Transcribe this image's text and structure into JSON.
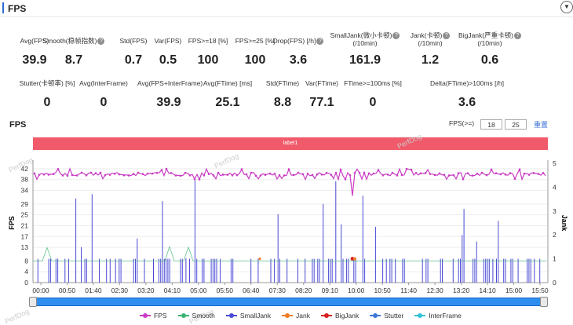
{
  "header": {
    "title": "FPS"
  },
  "stats_row1": [
    {
      "label": "Avg(FPS)",
      "value": "39.9",
      "help": false
    },
    {
      "label": "Smooth(稳帧指数)",
      "value": "8.7",
      "help": true
    },
    {
      "label": "Std(FPS)",
      "value": "0.7",
      "help": false
    },
    {
      "label": "Var(FPS)",
      "value": "0.5",
      "help": false
    },
    {
      "label": "FPS>=18 [%]",
      "value": "100",
      "help": false
    },
    {
      "label": "FPS>=25 [%]",
      "value": "100",
      "help": false
    },
    {
      "label": "Drop(FPS) [/h]",
      "value": "3.6",
      "help": true
    },
    {
      "label": "SmallJank(微小卡顿)",
      "label2": "(/10min)",
      "value": "161.9",
      "help": true
    },
    {
      "label": "Jank(卡顿)",
      "label2": "(/10min)",
      "value": "1.2",
      "help": true
    },
    {
      "label": "BigJank(严重卡顿)",
      "label2": "(/10min)",
      "value": "0.6",
      "help": true
    }
  ],
  "stats_row2": [
    {
      "label": "Stutter(卡顿率) [%]",
      "value": "0"
    },
    {
      "label": "Avg(InterFrame)",
      "value": "0"
    },
    {
      "label": "Avg(FPS+InterFrame)",
      "value": "39.9"
    },
    {
      "label": "Avg(FTime) [ms]",
      "value": "25.1"
    },
    {
      "label": "Std(FTime)",
      "value": "8.8"
    },
    {
      "label": "Var(FTime)",
      "value": "77.1"
    },
    {
      "label": "FTime>=100ms [%]",
      "value": "0"
    },
    {
      "label": "Delta(FTime)>100ms [/h]",
      "value": "3.6"
    }
  ],
  "chart": {
    "title": "FPS",
    "threshold_label": "FPS(>=)",
    "threshold_low": "18",
    "threshold_high": "25",
    "reset_label": "重置",
    "band_label": "label1",
    "watermark": "PerfDog"
  },
  "chart_data": {
    "type": "line",
    "ylabel": "FPS",
    "y2label": "Jank",
    "ylim": [
      0,
      44
    ],
    "y2lim": [
      0,
      5
    ],
    "yticks": [
      0,
      4,
      8,
      13,
      17,
      21,
      25,
      29,
      34,
      38,
      42
    ],
    "y2ticks": [
      0,
      1,
      2,
      3,
      4,
      5
    ],
    "xticks": [
      "00:00",
      "00:50",
      "01:40",
      "02:30",
      "03:20",
      "04:10",
      "05:00",
      "05:50",
      "06:40",
      "07:30",
      "08:20",
      "09:10",
      "10:00",
      "10:50",
      "11:40",
      "12:30",
      "13:20",
      "14:10",
      "15:00",
      "15:50"
    ],
    "series": [
      {
        "name": "FPS",
        "color": "#c93cc4",
        "baseline": 40,
        "min": 38,
        "max": 42,
        "drops": [
          {
            "t": 0.62,
            "v": 32
          }
        ]
      },
      {
        "name": "Smooth",
        "color": "#3cb371"
      },
      {
        "name": "SmallJank",
        "color": "#4a4ad6"
      },
      {
        "name": "Jank",
        "color": "#f07c2a"
      },
      {
        "name": "BigJank",
        "color": "#d62020"
      },
      {
        "name": "Stutter",
        "color": "#3c78d8"
      },
      {
        "name": "InterFrame",
        "color": "#31c3d6"
      }
    ]
  }
}
